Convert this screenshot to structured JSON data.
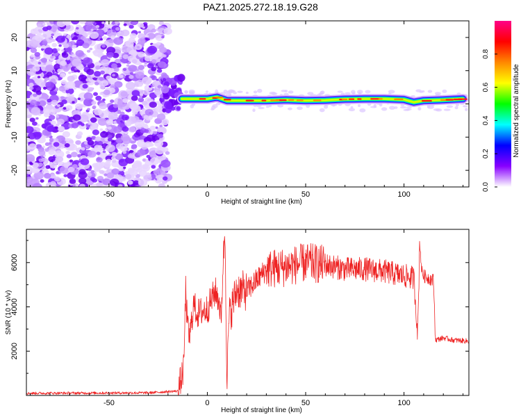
{
  "figure": {
    "title": "PAZ1.2025.272.18.19.G28"
  },
  "chart_data": [
    {
      "type": "heatmap",
      "name": "spectrogram",
      "xlabel": "Height of straight line (km)",
      "ylabel": "Frequency (Hz)",
      "xlim": [
        -92,
        133
      ],
      "ylim": [
        -25,
        25
      ],
      "xticks": [
        -50,
        0,
        50,
        100
      ],
      "yticks": [
        -20,
        -10,
        0,
        10,
        20
      ],
      "noise_region_x": [
        -92,
        -20
      ],
      "transition_x": [
        -20,
        -12
      ],
      "signal_region_x": [
        -12,
        133
      ],
      "signal_ridge_frequency_hz": 1,
      "ridge_points": [
        [
          -13,
          1.5
        ],
        [
          -5,
          1.5
        ],
        [
          0,
          1.5
        ],
        [
          5,
          2
        ],
        [
          10,
          1
        ],
        [
          20,
          1
        ],
        [
          30,
          1
        ],
        [
          40,
          1.2
        ],
        [
          50,
          1
        ],
        [
          60,
          1.1
        ],
        [
          70,
          1.4
        ],
        [
          80,
          1.5
        ],
        [
          90,
          1.5
        ],
        [
          100,
          1.3
        ],
        [
          105,
          0.5
        ],
        [
          110,
          1
        ],
        [
          120,
          1.2
        ],
        [
          130,
          1.5
        ]
      ],
      "colorbar": {
        "label": "Normalized spectral amplitude",
        "ticks": [
          "0.0",
          "0.2",
          "0.4",
          "0.6",
          "0.8"
        ],
        "range": [
          0,
          1
        ],
        "stops": [
          "#ffffff",
          "#8800ff",
          "#0000ff",
          "#00ffff",
          "#00ff00",
          "#ffff00",
          "#ff8800",
          "#ff0000",
          "#ff0088"
        ]
      }
    },
    {
      "type": "line",
      "name": "snr",
      "xlabel": "Height of straight line (km)",
      "ylabel": "SNR (10 * v/v)",
      "xlim": [
        -92,
        133
      ],
      "ylim": [
        0,
        7500
      ],
      "xticks": [
        -50,
        0,
        50,
        100
      ],
      "yticks": [
        2000,
        4000,
        6000
      ],
      "color": "#ee2222",
      "x": [
        -92,
        -60,
        -30,
        -15,
        -12,
        -11,
        -10,
        -9,
        -7,
        -5,
        0,
        4,
        6,
        7,
        8,
        9,
        10,
        11,
        15,
        20,
        30,
        40,
        50,
        60,
        70,
        80,
        90,
        100,
        105,
        107,
        108,
        109,
        110,
        115,
        116,
        120,
        125,
        133
      ],
      "values": [
        100,
        110,
        120,
        200,
        1200,
        4800,
        3000,
        2600,
        4100,
        3700,
        3900,
        4700,
        4300,
        3300,
        6000,
        7400,
        500,
        3500,
        4800,
        4700,
        5700,
        5800,
        6000,
        5900,
        5700,
        5700,
        5600,
        5400,
        5300,
        2800,
        7000,
        5600,
        5400,
        5200,
        2500,
        2600,
        2500,
        2450
      ]
    }
  ]
}
